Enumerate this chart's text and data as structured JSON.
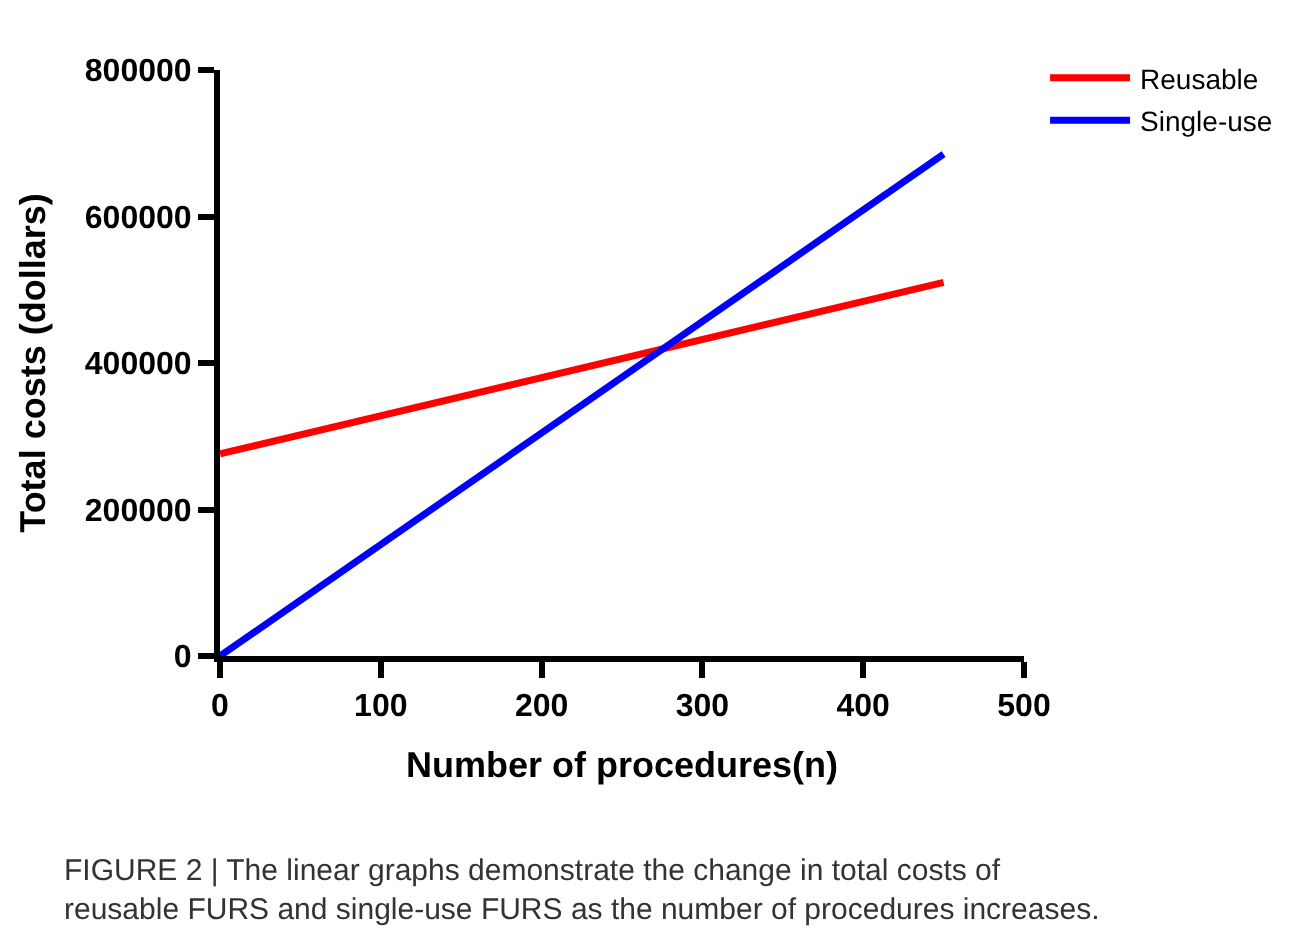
{
  "chart_data": {
    "type": "line",
    "xlabel": "Number of procedures(n)",
    "ylabel": "Total costs (dollars)",
    "x": [
      0,
      450
    ],
    "series": [
      {
        "name": "Reusable",
        "color": "#ff0000",
        "values": [
          276000,
          510000
        ]
      },
      {
        "name": "Single-use",
        "color": "#0000ff",
        "values": [
          0,
          685000
        ]
      }
    ],
    "xlim": [
      0,
      500
    ],
    "xticks": [
      0,
      100,
      200,
      300,
      400,
      500
    ],
    "ylim": [
      0,
      800000
    ],
    "yticks": [
      0,
      200000,
      400000,
      600000,
      800000
    ],
    "legend": "top right",
    "marker": "none",
    "line_style": "solid",
    "annotations": [
      "FIGURE 2 | The linear graphs demonstrate the change in total costs of reusable FURS and single-use FURS as the number of procedures increases."
    ]
  }
}
